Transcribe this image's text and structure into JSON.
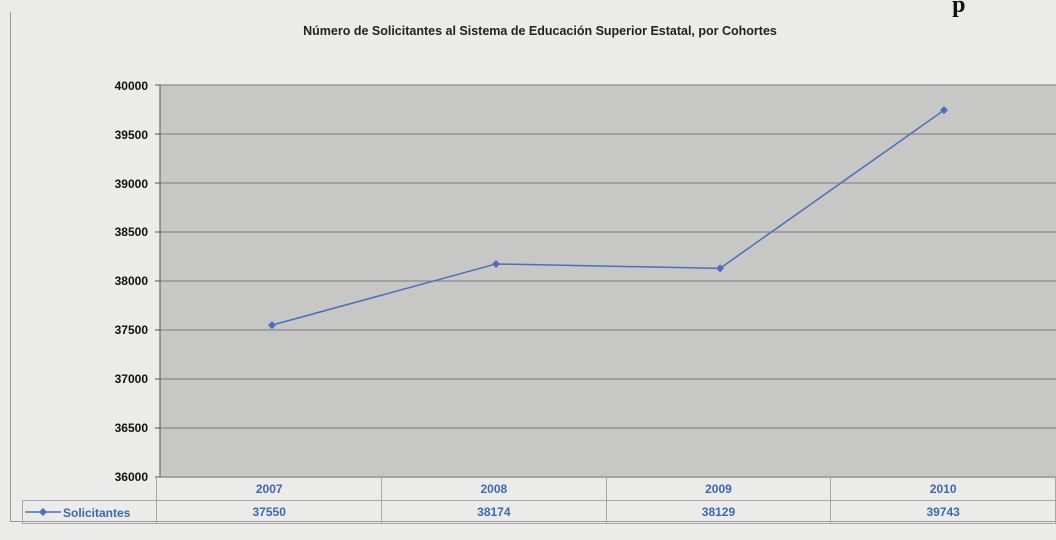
{
  "title": "Número de Solicitantes al Sistema de Educación Superior Estatal, por Cohortes",
  "cut_heading": "p",
  "colors": {
    "series": "#4a6fbd",
    "plot_bg": "#c7c7c5",
    "grid": "#7a7a7a"
  },
  "chart_data": {
    "type": "line",
    "title": "Número de Solicitantes al Sistema de Educación Superior Estatal, por Cohortes",
    "categories": [
      "2007",
      "2008",
      "2009",
      "2010"
    ],
    "series": [
      {
        "name": "Solicitantes",
        "values": [
          37550,
          38174,
          38129,
          39743
        ]
      }
    ],
    "ylim": [
      36000,
      40000
    ],
    "yticks": [
      "40000",
      "39500",
      "39000",
      "38500",
      "38000",
      "37500",
      "37000",
      "36500",
      "36000"
    ],
    "grid": true,
    "marker": "diamond",
    "legend": "data-table-left"
  },
  "data_table": {
    "legend_label": "Solicitantes",
    "values": [
      "37550",
      "38174",
      "38129",
      "39743"
    ]
  }
}
